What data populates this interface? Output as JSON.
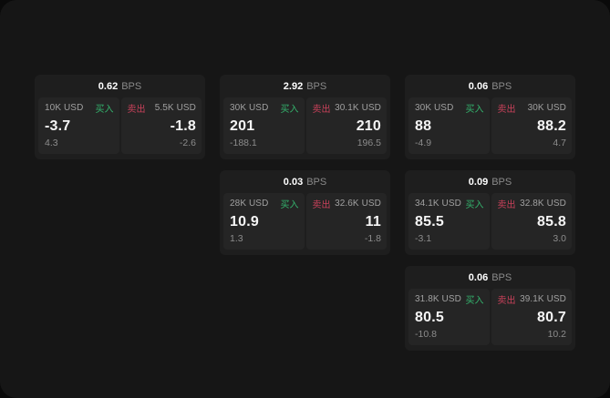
{
  "page": {
    "bps_suffix": "BPS",
    "buy_label": "买入",
    "sell_label": "卖出"
  },
  "colors": {
    "buy_green": "#34b36d",
    "sell_red": "#c8415a",
    "page_bg": "#161616",
    "card_bg": "#1e1e1e",
    "panel_bg": "#252525"
  },
  "cards": [
    {
      "row": 0,
      "col": 0,
      "bps": "0.62",
      "buy": {
        "size": "10K USD",
        "value": "-3.7",
        "sub": "4.3"
      },
      "sell": {
        "size": "5.5K USD",
        "value": "-1.8",
        "sub": "-2.6"
      }
    },
    {
      "row": 0,
      "col": 1,
      "bps": "2.92",
      "buy": {
        "size": "30K USD",
        "value": "201",
        "sub": "-188.1"
      },
      "sell": {
        "size": "30.1K USD",
        "value": "210",
        "sub": "196.5"
      }
    },
    {
      "row": 0,
      "col": 2,
      "bps": "0.06",
      "buy": {
        "size": "30K USD",
        "value": "88",
        "sub": "-4.9"
      },
      "sell": {
        "size": "30K USD",
        "value": "88.2",
        "sub": "4.7"
      }
    },
    {
      "row": 1,
      "col": 1,
      "bps": "0.03",
      "buy": {
        "size": "28K USD",
        "value": "10.9",
        "sub": "1.3"
      },
      "sell": {
        "size": "32.6K USD",
        "value": "11",
        "sub": "-1.8"
      }
    },
    {
      "row": 1,
      "col": 2,
      "bps": "0.09",
      "buy": {
        "size": "34.1K USD",
        "value": "85.5",
        "sub": "-3.1"
      },
      "sell": {
        "size": "32.8K USD",
        "value": "85.8",
        "sub": "3.0"
      }
    },
    {
      "row": 2,
      "col": 2,
      "bps": "0.06",
      "buy": {
        "size": "31.8K USD",
        "value": "80.5",
        "sub": "-10.8"
      },
      "sell": {
        "size": "39.1K USD",
        "value": "80.7",
        "sub": "10.2"
      }
    }
  ]
}
